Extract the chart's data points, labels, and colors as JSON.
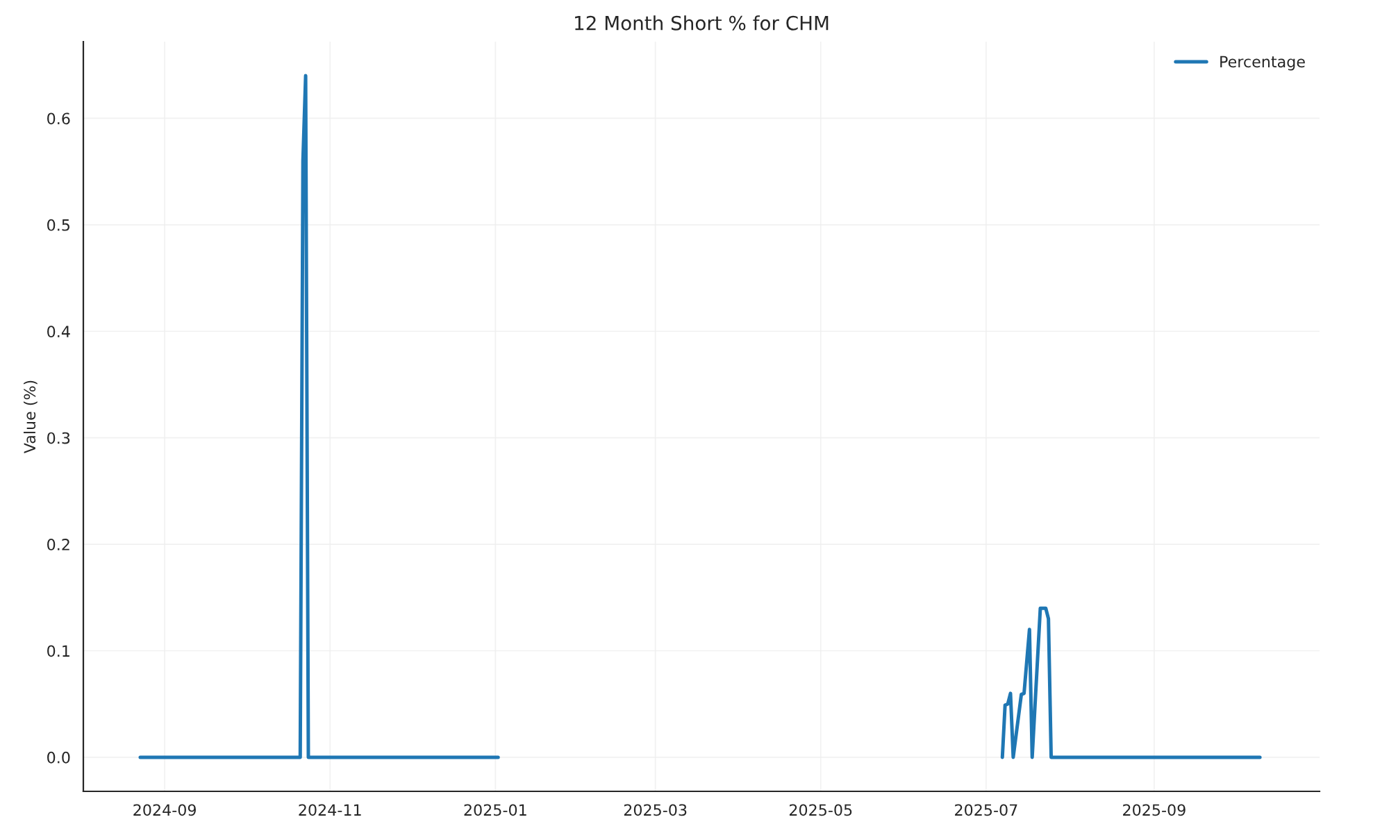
{
  "chart_data": {
    "type": "line",
    "title": "12 Month Short % for CHM",
    "ylabel": "Value (%)",
    "x": [
      "2024-08-23",
      "2024-10-21",
      "2024-10-22",
      "2024-10-23",
      "2024-10-24",
      "2025-01-02",
      "2025-04-01",
      "2025-07-07",
      "2025-07-08",
      "2025-07-09",
      "2025-07-10",
      "2025-07-11",
      "2025-07-14",
      "2025-07-15",
      "2025-07-17",
      "2025-07-18",
      "2025-07-21",
      "2025-07-23",
      "2025-07-24",
      "2025-07-25",
      "2025-10-10"
    ],
    "series": [
      {
        "name": "Percentage",
        "color": "#1f77b4",
        "values": [
          0,
          0,
          0.56,
          0.64,
          0,
          0,
          null,
          0,
          0.049,
          0.05,
          0.06,
          0,
          0.059,
          0.06,
          0.12,
          0,
          0.14,
          0.14,
          0.13,
          0,
          0
        ]
      }
    ],
    "xlim": [
      "2024-08-02",
      "2025-11-01"
    ],
    "xticks": [
      {
        "value": "2024-09-01",
        "label": "2024-09"
      },
      {
        "value": "2024-11-01",
        "label": "2024-11"
      },
      {
        "value": "2025-01-01",
        "label": "2025-01"
      },
      {
        "value": "2025-03-01",
        "label": "2025-03"
      },
      {
        "value": "2025-05-01",
        "label": "2025-05"
      },
      {
        "value": "2025-07-01",
        "label": "2025-07"
      },
      {
        "value": "2025-09-01",
        "label": "2025-09"
      }
    ],
    "ylim": [
      -0.032,
      0.672
    ],
    "yticks": [
      {
        "value": 0,
        "label": "0.0"
      },
      {
        "value": 0.1,
        "label": "0.1"
      },
      {
        "value": 0.2,
        "label": "0.2"
      },
      {
        "value": 0.3,
        "label": "0.3"
      },
      {
        "value": 0.4,
        "label": "0.4"
      },
      {
        "value": 0.5,
        "label": "0.5"
      },
      {
        "value": 0.6,
        "label": "0.6"
      }
    ],
    "grid": true,
    "legend": "top right",
    "line_style": "solid"
  }
}
